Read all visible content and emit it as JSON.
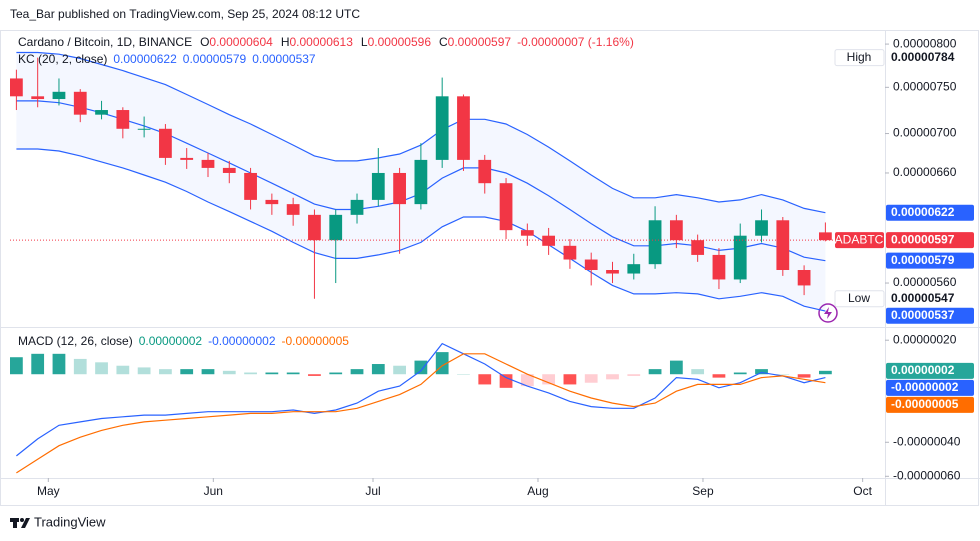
{
  "header": {
    "byline": "Tea_Bar published on TradingView.com, Sep 25, 2024 08:12 UTC"
  },
  "chart_data": {
    "type": "candlestick",
    "title": "Cardano / Bitcoin, 1D, BINANCE",
    "symbol": "ADABTC",
    "ohlc_labels": [
      "O",
      "H",
      "L",
      "C"
    ],
    "change": "-0.00000007 (-1.16%)",
    "high_label": "High",
    "low_label": "Low",
    "up_color": "#089981",
    "down_color": "#f23645",
    "log_scale": true,
    "grid": false,
    "ylim": [
      5.26e-06,
      8.17e-06
    ],
    "yticks": [
      {
        "value": 5.6e-06,
        "label": "0.00000560"
      },
      {
        "value": 6.6e-06,
        "label": "0.00000660"
      },
      {
        "value": 7e-06,
        "label": "0.00000700"
      },
      {
        "value": 7.5e-06,
        "label": "0.00000750"
      },
      {
        "value": 8e-06,
        "label": "0.00000800"
      }
    ],
    "xlim": [
      -0.3,
      40.8
    ],
    "xticks": [
      {
        "value": 1.5,
        "label": "May"
      },
      {
        "value": 9.25,
        "label": "Jun"
      },
      {
        "value": 16.75,
        "label": "Jul"
      },
      {
        "value": 24.5,
        "label": "Aug"
      },
      {
        "value": 32.25,
        "label": "Sep"
      },
      {
        "value": 39.75,
        "label": "Oct"
      }
    ],
    "open": [
      7.6e-06,
      7.4e-06,
      7.37e-06,
      7.45e-06,
      7.2e-06,
      7.25e-06,
      7.05e-06,
      7.05e-06,
      6.75e-06,
      6.73e-06,
      6.65e-06,
      6.6e-06,
      6.34e-06,
      6.3e-06,
      6.2e-06,
      5.97e-06,
      6.2e-06,
      6.34e-06,
      6.6e-06,
      6.3e-06,
      6.73e-06,
      7.4e-06,
      6.73e-06,
      6.5e-06,
      6.06e-06,
      6.01e-06,
      5.92e-06,
      5.8e-06,
      5.71e-06,
      5.68e-06,
      5.76e-06,
      6.15e-06,
      5.97e-06,
      5.84e-06,
      5.63e-06,
      6.01e-06,
      6.15e-06,
      5.71e-06,
      6.04e-06
    ],
    "high": [
      7.7e-06,
      7.84e-06,
      7.6e-06,
      7.48e-06,
      7.35e-06,
      7.28e-06,
      7.18e-06,
      7.1e-06,
      6.85e-06,
      6.8e-06,
      6.72e-06,
      6.65e-06,
      6.4e-06,
      6.36e-06,
      6.25e-06,
      6.25e-06,
      6.4e-06,
      6.85e-06,
      6.65e-06,
      6.9e-06,
      7.61e-06,
      7.42e-06,
      6.78e-06,
      6.55e-06,
      6.12e-06,
      6.08e-06,
      5.98e-06,
      5.86e-06,
      5.78e-06,
      5.85e-06,
      6.28e-06,
      6.2e-06,
      6.02e-06,
      5.9e-06,
      6.12e-06,
      6.25e-06,
      6.18e-06,
      5.75e-06,
      6.13e-06
    ],
    "low": [
      7.25e-06,
      7.28e-06,
      7.3e-06,
      7.12e-06,
      7.15e-06,
      6.95e-06,
      6.96e-06,
      6.68e-06,
      6.64e-06,
      6.56e-06,
      6.5e-06,
      6.25e-06,
      6.2e-06,
      6.1e-06,
      5.47e-06,
      5.6e-06,
      6.12e-06,
      6.28e-06,
      5.85e-06,
      6.25e-06,
      6.65e-06,
      6.62e-06,
      6.4e-06,
      5.98e-06,
      5.92e-06,
      5.84e-06,
      5.72e-06,
      5.58e-06,
      5.6e-06,
      5.63e-06,
      5.72e-06,
      5.9e-06,
      5.78e-06,
      5.55e-06,
      5.6e-06,
      5.95e-06,
      5.66e-06,
      5.5e-06,
      5.96e-06
    ],
    "close": [
      7.4e-06,
      7.37e-06,
      7.45e-06,
      7.2e-06,
      7.25e-06,
      7.05e-06,
      7.05e-06,
      6.75e-06,
      6.73e-06,
      6.65e-06,
      6.6e-06,
      6.34e-06,
      6.3e-06,
      6.2e-06,
      5.97e-06,
      6.2e-06,
      6.34e-06,
      6.6e-06,
      6.3e-06,
      6.73e-06,
      7.4e-06,
      6.73e-06,
      6.5e-06,
      6.06e-06,
      6.01e-06,
      5.92e-06,
      5.8e-06,
      5.71e-06,
      5.68e-06,
      5.76e-06,
      6.15e-06,
      5.97e-06,
      5.84e-06,
      5.63e-06,
      6.01e-06,
      6.15e-06,
      5.71e-06,
      5.58e-06,
      5.97e-06
    ],
    "kc": {
      "name": "KC (20, 2, close)",
      "color": "#2962ff",
      "upper": [
        7.9e-06,
        7.9e-06,
        7.88e-06,
        7.83e-06,
        7.76e-06,
        7.69e-06,
        7.61e-06,
        7.53e-06,
        7.42e-06,
        7.31e-06,
        7.2e-06,
        7.1e-06,
        6.99e-06,
        6.88e-06,
        6.77e-06,
        6.72e-06,
        6.72e-06,
        6.75e-06,
        6.79e-06,
        6.88e-06,
        7.04e-06,
        7.15e-06,
        7.15e-06,
        7.1e-06,
        6.99e-06,
        6.86e-06,
        6.72e-06,
        6.58e-06,
        6.45e-06,
        6.36e-06,
        6.36e-06,
        6.39e-06,
        6.36e-06,
        6.32e-06,
        6.34e-06,
        6.39e-06,
        6.34e-06,
        6.26e-06,
        6.22e-06
      ],
      "middle": [
        7.35e-06,
        7.35e-06,
        7.33e-06,
        7.28e-06,
        7.22e-06,
        7.15e-06,
        7.08e-06,
        7e-06,
        6.9e-06,
        6.8e-06,
        6.7e-06,
        6.6e-06,
        6.5e-06,
        6.4e-06,
        6.3e-06,
        6.25e-06,
        6.25e-06,
        6.28e-06,
        6.32e-06,
        6.4e-06,
        6.55e-06,
        6.65e-06,
        6.65e-06,
        6.6e-06,
        6.5e-06,
        6.38e-06,
        6.25e-06,
        6.12e-06,
        6e-06,
        5.92e-06,
        5.92e-06,
        5.94e-06,
        5.92e-06,
        5.88e-06,
        5.9e-06,
        5.94e-06,
        5.9e-06,
        5.82e-06,
        5.79e-06
      ],
      "lower": [
        6.84e-06,
        6.84e-06,
        6.82e-06,
        6.77e-06,
        6.71e-06,
        6.65e-06,
        6.58e-06,
        6.51e-06,
        6.42e-06,
        6.32e-06,
        6.23e-06,
        6.14e-06,
        6.05e-06,
        5.95e-06,
        5.86e-06,
        5.81e-06,
        5.81e-06,
        5.84e-06,
        5.88e-06,
        5.95e-06,
        6.09e-06,
        6.18e-06,
        6.18e-06,
        6.14e-06,
        6.05e-06,
        5.93e-06,
        5.81e-06,
        5.69e-06,
        5.58e-06,
        5.51e-06,
        5.51e-06,
        5.52e-06,
        5.51e-06,
        5.47e-06,
        5.49e-06,
        5.52e-06,
        5.49e-06,
        5.41e-06,
        5.37e-06
      ]
    },
    "macd": {
      "name": "MACD (12, 26, close)",
      "ylim": [
        -6.1e-07,
        2.6e-07
      ],
      "yticks": [
        {
          "value": -6e-07,
          "label": "-0.00000060"
        },
        {
          "value": -4e-07,
          "label": "-0.00000040"
        },
        {
          "value": 2e-07,
          "label": "0.00000020"
        }
      ],
      "macd_color": "#2962ff",
      "signal_color": "#ff6d00",
      "up_color": "#26a69a",
      "down_color": "#ff5252",
      "histogram": [
        1e-07,
        1.2e-07,
        1.2e-07,
        9e-08,
        7e-08,
        5e-08,
        4e-08,
        3e-08,
        3e-08,
        3e-08,
        2e-08,
        1e-08,
        1e-08,
        1e-08,
        -1e-08,
        1e-08,
        3e-08,
        6e-08,
        5e-08,
        8e-08,
        1.3e-07,
        0,
        -6e-08,
        -8e-08,
        -7e-08,
        -6e-08,
        -6e-08,
        -5e-08,
        -3e-08,
        -1e-08,
        3e-08,
        8e-08,
        3e-08,
        -2e-08,
        1e-08,
        3e-08,
        0,
        -2e-08,
        2e-08
      ],
      "macd": [
        -4.8e-07,
        -3.8e-07,
        -3e-07,
        -2.8e-07,
        -2.6e-07,
        -2.5e-07,
        -2.4e-07,
        -2.4e-07,
        -2.3e-07,
        -2.2e-07,
        -2.2e-07,
        -2.2e-07,
        -2.2e-07,
        -2.1e-07,
        -2.3e-07,
        -2.1e-07,
        -1.7e-07,
        -1e-07,
        -7e-08,
        2e-08,
        1.8e-07,
        1.2e-07,
        6e-08,
        -2e-08,
        -7e-08,
        -1.1e-07,
        -1.6e-07,
        -1.9e-07,
        -2e-07,
        -2e-07,
        -1.4e-07,
        -2e-08,
        -3e-08,
        -8e-08,
        -5e-08,
        1e-08,
        -1e-08,
        -5e-08,
        -2e-08
      ],
      "signal": [
        -5.8e-07,
        -5e-07,
        -4.2e-07,
        -3.7e-07,
        -3.3e-07,
        -3e-07,
        -2.8e-07,
        -2.7e-07,
        -2.6e-07,
        -2.5e-07,
        -2.4e-07,
        -2.3e-07,
        -2.3e-07,
        -2.2e-07,
        -2.2e-07,
        -2.2e-07,
        -2e-07,
        -1.6e-07,
        -1.2e-07,
        -6e-08,
        5e-08,
        1.2e-07,
        1.2e-07,
        6e-08,
        0,
        -5e-08,
        -1e-07,
        -1.4e-07,
        -1.7e-07,
        -1.9e-07,
        -1.7e-07,
        -1e-07,
        -6e-08,
        -6e-08,
        -6e-08,
        -2e-08,
        -1e-08,
        -3e-08,
        -5e-08
      ],
      "value_labels": {
        "histogram": "0.00000002",
        "macd": "-0.00000002",
        "signal": "-0.00000005"
      }
    }
  },
  "footer": {
    "brand": "TradingView"
  }
}
